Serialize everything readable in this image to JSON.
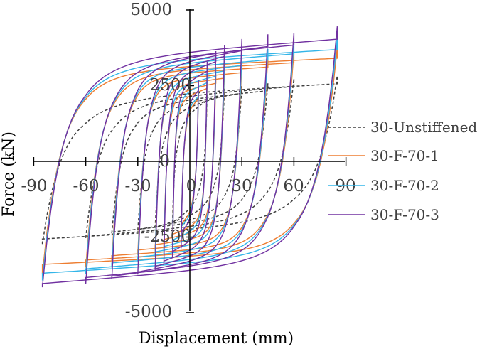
{
  "chart_data": {
    "type": "line",
    "title": "",
    "xlabel": "Displacement (mm)",
    "ylabel": "Force (kN)",
    "xlim": [
      -90,
      90
    ],
    "ylim": [
      -5000,
      5000
    ],
    "xticks": [
      "-90",
      "-60",
      "-30",
      "0",
      "30",
      "60",
      "90"
    ],
    "yticks": [
      "5000",
      "2500",
      "0",
      "-2500",
      "-5000"
    ],
    "grid": false,
    "legend_position": "right",
    "series": [
      {
        "name": "30-Unstiffened",
        "color": "#404040",
        "dash": "dashed",
        "loops": [
          {
            "amp": 10,
            "fpos": 2100,
            "fneg": -1900,
            "res": 800
          },
          {
            "amp": 20,
            "fpos": 2300,
            "fneg": -2100,
            "res": 1200
          },
          {
            "amp": 30,
            "fpos": 2400,
            "fneg": -2200,
            "res": 1500
          },
          {
            "amp": 45,
            "fpos": 2500,
            "fneg": -2300,
            "res": 1650
          },
          {
            "amp": 60,
            "fpos": 2650,
            "fneg": -2450,
            "res": 1750
          },
          {
            "amp": 85,
            "fpos": 2750,
            "fneg": -2650,
            "res": 1850
          }
        ]
      },
      {
        "name": "30-F-70-1",
        "color": "#ED7D31",
        "dash": "solid",
        "loops": [
          {
            "amp": 5,
            "fpos": 2200,
            "fneg": -2400,
            "res": 1300
          },
          {
            "amp": 10,
            "fpos": 2600,
            "fneg": -2700,
            "res": 1900
          },
          {
            "amp": 15,
            "fpos": 2800,
            "fneg": -2850,
            "res": 2200
          },
          {
            "amp": 20,
            "fpos": 3000,
            "fneg": -2950,
            "res": 2500
          },
          {
            "amp": 30,
            "fpos": 3200,
            "fneg": -3050,
            "res": 2700
          },
          {
            "amp": 45,
            "fpos": 3400,
            "fneg": -3250,
            "res": 2850
          },
          {
            "amp": 60,
            "fpos": 3550,
            "fneg": -3450,
            "res": 2900
          },
          {
            "amp": 85,
            "fpos": 3700,
            "fneg": -3650,
            "res": 2950
          }
        ]
      },
      {
        "name": "30-F-70-2",
        "color": "#33B5E8",
        "dash": "solid",
        "loops": [
          {
            "amp": 5,
            "fpos": 2300,
            "fneg": -2500,
            "res": 1400
          },
          {
            "amp": 10,
            "fpos": 2800,
            "fneg": -2850,
            "res": 2000
          },
          {
            "amp": 15,
            "fpos": 3050,
            "fneg": -3000,
            "res": 2350
          },
          {
            "amp": 20,
            "fpos": 3250,
            "fneg": -3100,
            "res": 2600
          },
          {
            "amp": 30,
            "fpos": 3450,
            "fneg": -3250,
            "res": 2800
          },
          {
            "amp": 45,
            "fpos": 3650,
            "fneg": -3450,
            "res": 2950
          },
          {
            "amp": 60,
            "fpos": 3850,
            "fneg": -3650,
            "res": 3000
          },
          {
            "amp": 85,
            "fpos": 4000,
            "fneg": -3850,
            "res": 3050
          }
        ]
      },
      {
        "name": "30-F-70-3",
        "color": "#7030A0",
        "dash": "solid",
        "loops": [
          {
            "amp": 5,
            "fpos": 2500,
            "fneg": -2700,
            "res": 1500
          },
          {
            "amp": 10,
            "fpos": 3200,
            "fneg": -3100,
            "res": 2200
          },
          {
            "amp": 15,
            "fpos": 3550,
            "fneg": -3350,
            "res": 2550
          },
          {
            "amp": 20,
            "fpos": 3750,
            "fneg": -3500,
            "res": 2800
          },
          {
            "amp": 30,
            "fpos": 3950,
            "fneg": -3650,
            "res": 2950
          },
          {
            "amp": 45,
            "fpos": 4100,
            "fneg": -3800,
            "res": 3050
          },
          {
            "amp": 60,
            "fpos": 4150,
            "fneg": -3950,
            "res": 3100
          },
          {
            "amp": 85,
            "fpos": 4350,
            "fneg": -4050,
            "res": 3150
          }
        ]
      }
    ]
  }
}
